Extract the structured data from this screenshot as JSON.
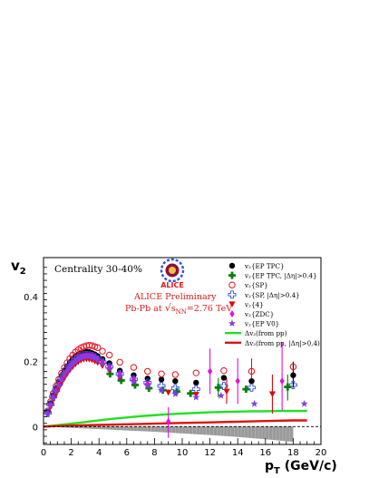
{
  "chart_data": {
    "type": "scatter",
    "xlabel": "p",
    "xlabel_sub": "T",
    "xlabel_unit": " (GeV/c)",
    "ylabel": "v",
    "ylabel_sub": "2",
    "xlim": [
      0,
      20
    ],
    "ylim": [
      -0.055,
      0.52
    ],
    "x_ticks": [
      "0",
      "2",
      "4",
      "6",
      "8",
      "10",
      "12",
      "14",
      "16",
      "18",
      "20"
    ],
    "y_ticks": [
      "0",
      "0.2",
      "0.4"
    ],
    "y_tick_values": [
      0,
      0.2,
      0.4
    ],
    "grid": false,
    "legend_position": "right",
    "annotations": {
      "centrality": "Centrality 30-40%",
      "logo_text": "ALICE",
      "preliminary": "ALICE Preliminary",
      "system_prefix": "Pb-Pb at ",
      "system_sqrt": "s",
      "system_sub": "NN",
      "system_value": "=2.76 TeV"
    },
    "series": [
      {
        "name": "v₂{EP TPC}",
        "color": "#000000",
        "marker": "filled-circle",
        "x": [
          0.3,
          0.5,
          0.7,
          0.9,
          1.1,
          1.3,
          1.5,
          1.7,
          1.9,
          2.1,
          2.3,
          2.5,
          2.7,
          2.9,
          3.1,
          3.3,
          3.5,
          3.7,
          3.9,
          4.25,
          4.75,
          5.5,
          6.5,
          7.5,
          8.5,
          9.5,
          11,
          13,
          15,
          18
        ],
        "y": [
          0.045,
          0.072,
          0.097,
          0.118,
          0.138,
          0.156,
          0.172,
          0.186,
          0.198,
          0.208,
          0.216,
          0.222,
          0.226,
          0.229,
          0.23,
          0.229,
          0.226,
          0.222,
          0.217,
          0.208,
          0.195,
          0.172,
          0.158,
          0.148,
          0.145,
          0.14,
          0.135,
          0.15,
          0.14,
          0.158
        ]
      },
      {
        "name": "v₂{EP TPC, |Δη|>0.4}",
        "color": "#008000",
        "marker": "cross",
        "x": [
          4.8,
          5.6,
          6.6,
          7.6,
          8.6,
          9.6,
          10.6,
          12.6,
          14.6,
          17.6
        ],
        "y": [
          0.162,
          0.142,
          0.128,
          0.118,
          0.112,
          0.108,
          0.102,
          0.12,
          0.115,
          0.122
        ]
      },
      {
        "name": "v₂{SP}",
        "color": "#e8101a",
        "marker": "open-circle",
        "x": [
          0.3,
          0.5,
          0.7,
          0.9,
          1.1,
          1.3,
          1.5,
          1.7,
          1.9,
          2.1,
          2.3,
          2.5,
          2.7,
          2.9,
          3.1,
          3.3,
          3.5,
          3.7,
          3.9,
          4.25,
          4.75,
          5.5,
          6.5,
          7.5,
          8.5,
          9.5,
          11,
          13,
          15,
          18
        ],
        "y": [
          0.048,
          0.076,
          0.102,
          0.124,
          0.145,
          0.164,
          0.181,
          0.196,
          0.209,
          0.22,
          0.229,
          0.236,
          0.242,
          0.246,
          0.249,
          0.25,
          0.249,
          0.246,
          0.243,
          0.232,
          0.22,
          0.198,
          0.182,
          0.17,
          0.162,
          0.16,
          0.165,
          0.172,
          0.17,
          0.184
        ]
      },
      {
        "name": "v₂{SP, |Δη|>0.4}",
        "color": "#3050e6",
        "marker": "open-cross",
        "x": [
          0.3,
          0.5,
          0.7,
          0.9,
          1.1,
          1.3,
          1.5,
          1.7,
          1.9,
          2.1,
          2.3,
          2.5,
          2.7,
          2.9,
          3.1,
          3.3,
          3.5,
          3.7,
          3.9,
          4.25,
          4.75,
          5.5,
          6.5,
          7.5,
          8.5,
          9.5,
          11,
          13,
          15,
          18
        ],
        "y": [
          0.042,
          0.068,
          0.092,
          0.112,
          0.131,
          0.148,
          0.163,
          0.177,
          0.188,
          0.198,
          0.206,
          0.212,
          0.216,
          0.219,
          0.22,
          0.219,
          0.217,
          0.213,
          0.208,
          0.198,
          0.184,
          0.162,
          0.145,
          0.135,
          0.125,
          0.118,
          0.115,
          0.125,
          0.12,
          0.128
        ]
      },
      {
        "name": "v₂{4}",
        "color": "#dd0a0a",
        "marker": "down-triangle",
        "x": [
          0.5,
          0.7,
          0.9,
          1.1,
          1.3,
          1.5,
          1.7,
          1.9,
          2.1,
          2.3,
          2.5,
          2.7,
          2.9,
          3.1,
          3.3,
          3.5,
          3.7,
          3.9,
          4.25,
          4.75,
          5.5,
          6.5,
          7.5,
          9,
          11,
          13.2,
          16.5
        ],
        "y": [
          0.06,
          0.082,
          0.1,
          0.118,
          0.134,
          0.149,
          0.162,
          0.174,
          0.184,
          0.192,
          0.199,
          0.204,
          0.207,
          0.208,
          0.207,
          0.205,
          0.201,
          0.197,
          0.187,
          0.172,
          0.15,
          0.135,
          0.125,
          0.105,
          0.098,
          0.108,
          0.1
        ]
      },
      {
        "name": "v₂{ZDC}",
        "color": "#e010e0",
        "marker": "diamond",
        "x": [
          0.3,
          0.5,
          0.7,
          0.9,
          1.1,
          1.3,
          1.5,
          1.7,
          1.9,
          2.1,
          2.3,
          2.5,
          2.7,
          2.9,
          3.1,
          3.3,
          3.5,
          3.7,
          3.9,
          4.25,
          4.75,
          5.5,
          6.5,
          7.5,
          9,
          12,
          14,
          17.2
        ],
        "y": [
          0.04,
          0.066,
          0.09,
          0.11,
          0.128,
          0.145,
          0.16,
          0.173,
          0.185,
          0.195,
          0.203,
          0.209,
          0.214,
          0.217,
          0.219,
          0.219,
          0.217,
          0.213,
          0.208,
          0.198,
          0.183,
          0.162,
          0.145,
          0.132,
          0.015,
          0.17,
          0.14,
          0.14
        ]
      },
      {
        "name": "v₂{EP V0}",
        "color": "#8040e0",
        "marker": "star",
        "x": [
          0.3,
          0.5,
          0.7,
          0.9,
          1.1,
          1.3,
          1.5,
          1.7,
          1.9,
          2.1,
          2.3,
          2.5,
          2.7,
          2.9,
          3.1,
          3.3,
          3.5,
          3.7,
          3.9,
          4.25,
          4.75,
          5.5,
          6.5,
          7.5,
          8.5,
          9.5,
          11,
          12.8,
          15.2,
          18.8
        ],
        "y": [
          0.04,
          0.065,
          0.088,
          0.108,
          0.126,
          0.143,
          0.158,
          0.171,
          0.182,
          0.192,
          0.2,
          0.206,
          0.211,
          0.214,
          0.216,
          0.215,
          0.213,
          0.209,
          0.204,
          0.193,
          0.178,
          0.155,
          0.138,
          0.125,
          0.112,
          0.1,
          0.09,
          0.095,
          0.07,
          0.07
        ]
      },
      {
        "name": "Δv₂(from pp)",
        "color": "#22e022",
        "marker": "line",
        "x": [
          0,
          1,
          2,
          3,
          4,
          5,
          6,
          7,
          8,
          9,
          10,
          11,
          12,
          13,
          14,
          15,
          16,
          17,
          18,
          19
        ],
        "y": [
          0,
          0.004,
          0.009,
          0.014,
          0.019,
          0.024,
          0.028,
          0.032,
          0.035,
          0.038,
          0.04,
          0.042,
          0.044,
          0.045,
          0.046,
          0.047,
          0.047,
          0.048,
          0.048,
          0.048
        ]
      },
      {
        "name": "Δv₂(from pp, |Δη|>0.4)",
        "color": "#e01010",
        "marker": "line",
        "x": [
          0,
          2,
          4,
          6,
          8,
          10,
          12,
          14,
          16,
          18,
          19
        ],
        "y": [
          0,
          0.003,
          0.005,
          0.007,
          0.009,
          0.011,
          0.013,
          0.015,
          0.017,
          0.019,
          0.019
        ]
      }
    ],
    "error_bars": [
      {
        "series": 1,
        "x": 12.6,
        "lo": 0.09,
        "hi": 0.15
      },
      {
        "series": 1,
        "x": 17.6,
        "lo": 0.08,
        "hi": 0.16
      },
      {
        "series": 4,
        "x": 13.2,
        "lo": 0.07,
        "hi": 0.15
      },
      {
        "series": 4,
        "x": 16.5,
        "lo": 0.04,
        "hi": 0.16
      },
      {
        "series": 5,
        "x": 9.0,
        "lo": -0.035,
        "hi": 0.06
      },
      {
        "series": 5,
        "x": 12.0,
        "lo": 0.1,
        "hi": 0.24
      },
      {
        "series": 5,
        "x": 14.0,
        "lo": 0.07,
        "hi": 0.21
      },
      {
        "series": 5,
        "x": 17.2,
        "lo": 0.05,
        "hi": 0.26
      },
      {
        "series": 0,
        "x": 18.0,
        "lo": 0.12,
        "hi": 0.2
      },
      {
        "series": 2,
        "x": 15.0,
        "lo": 0.13,
        "hi": 0.21
      }
    ],
    "systematic_band": {
      "color": "#9a9a9a",
      "x": [
        0,
        2,
        4,
        6,
        8,
        10,
        12,
        14,
        16,
        18
      ],
      "y_low": [
        0,
        -0.004,
        -0.008,
        -0.012,
        -0.016,
        -0.021,
        -0.026,
        -0.032,
        -0.039,
        -0.047
      ]
    },
    "colors": {
      "logo_red": "#e01818",
      "logo_blue": "#3050e6",
      "preliminary_red": "#e01818"
    }
  }
}
